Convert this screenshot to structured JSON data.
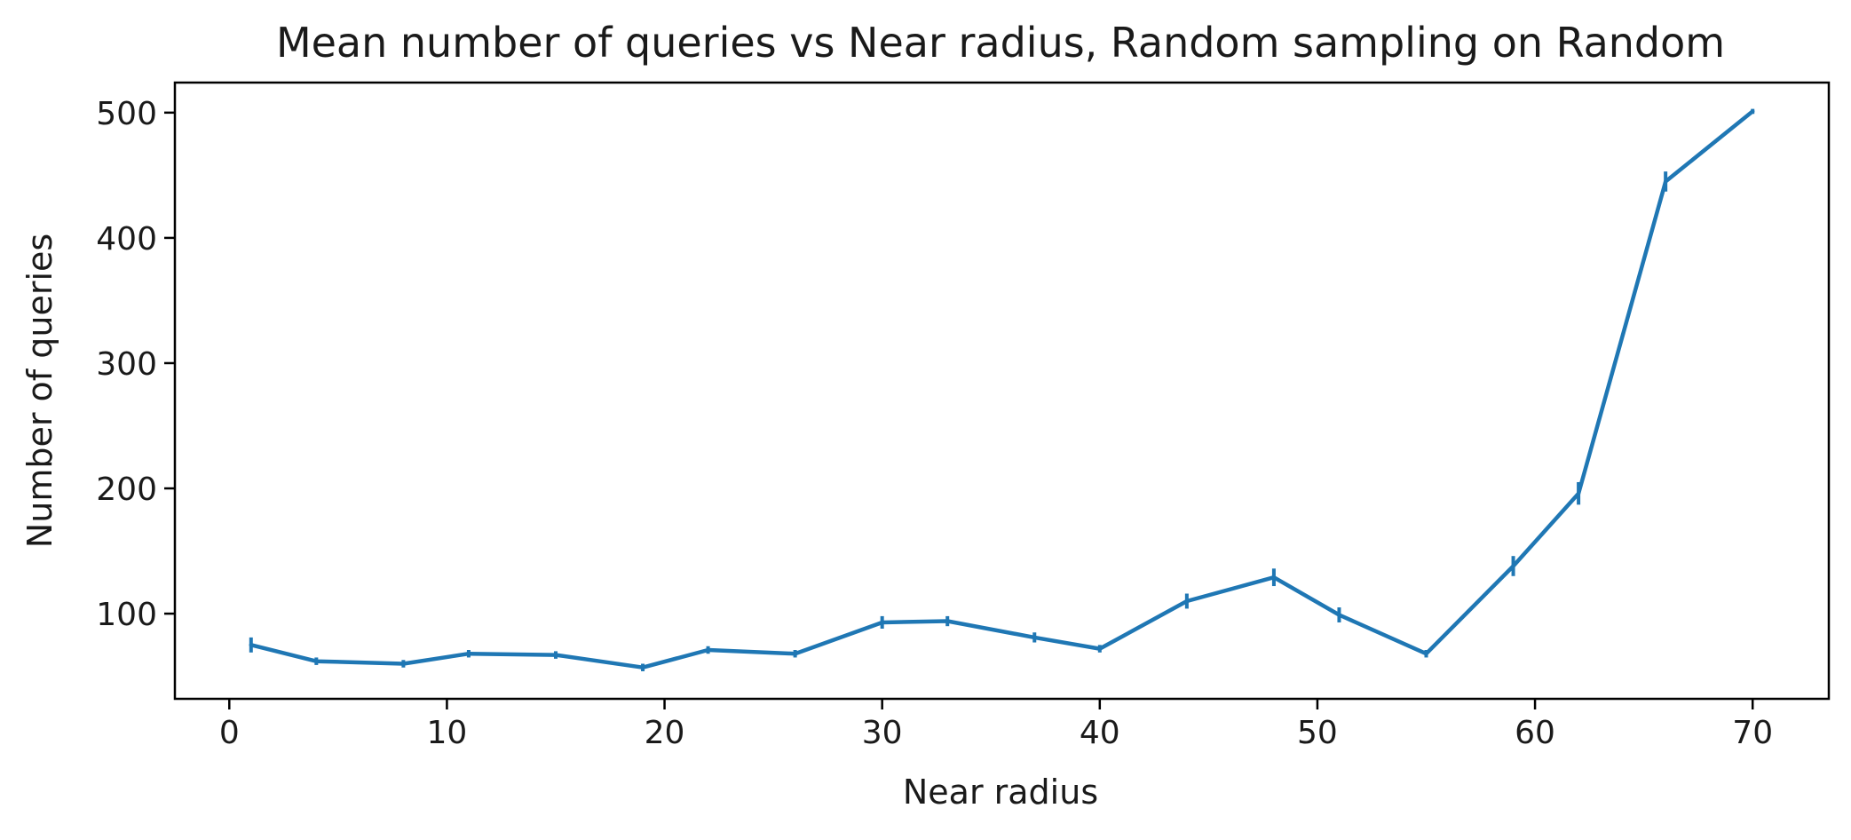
{
  "chart_data": {
    "type": "line",
    "title": "Mean number of queries vs Near radius, Random sampling on Random",
    "xlabel": "Near radius",
    "ylabel": "Number of queries",
    "xlim": [
      -2.5,
      73.5
    ],
    "ylim": [
      32,
      524
    ],
    "x_ticks": [
      0,
      10,
      20,
      30,
      40,
      50,
      60,
      70
    ],
    "y_ticks": [
      100,
      200,
      300,
      400,
      500
    ],
    "x_tick_labels": [
      "0",
      "10",
      "20",
      "30",
      "40",
      "50",
      "60",
      "70"
    ],
    "y_tick_labels": [
      "100",
      "200",
      "300",
      "400",
      "500"
    ],
    "grid": false,
    "legend": "none",
    "color": "#1f77b4",
    "series": [
      {
        "x": [
          1,
          4,
          8,
          11,
          15,
          19,
          22,
          26,
          30,
          33,
          37,
          40,
          44,
          48,
          51,
          55,
          59,
          62,
          66,
          70
        ],
        "y": [
          75,
          62,
          60,
          68,
          67,
          57,
          71,
          68,
          93,
          94,
          81,
          72,
          110,
          129,
          99,
          68,
          138,
          196,
          445,
          501
        ],
        "error": [
          6,
          3,
          3,
          3,
          3,
          3,
          3,
          3,
          5,
          4,
          4,
          3,
          6,
          7,
          6,
          3,
          8,
          9,
          8,
          2
        ]
      }
    ]
  }
}
